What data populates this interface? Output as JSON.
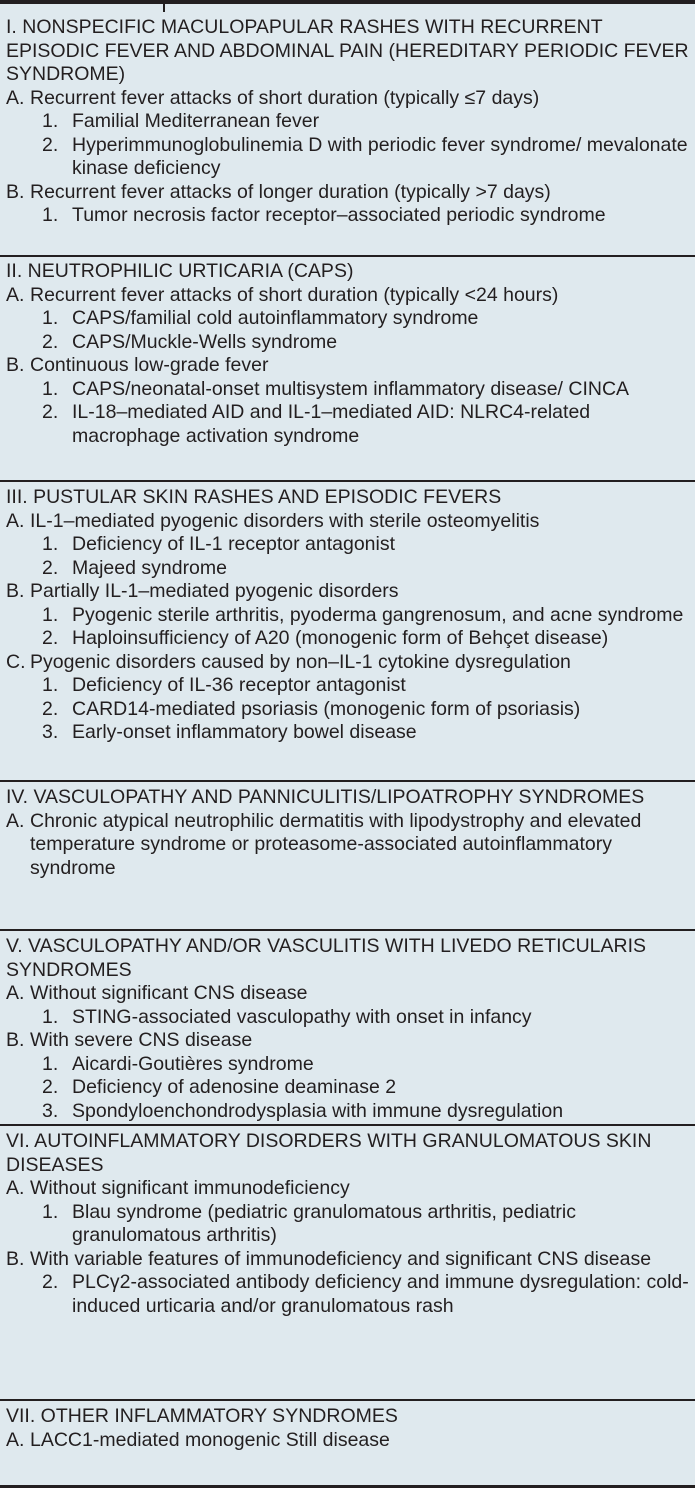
{
  "sections": [
    {
      "heading": "I. NONSPECIFIC MACULOPAPULAR RASHES WITH RECURRENT EPISODIC FEVER AND ABDOMINAL PAIN (HEREDITARY PERIODIC FEVER SYNDROME)",
      "groups": [
        {
          "label": "A.",
          "text": "Recurrent fever attacks of short duration (typically ≤7 days)",
          "items": [
            {
              "label": "1.",
              "text": "Familial Mediterranean fever"
            },
            {
              "label": "2.",
              "text": "Hyperimmunoglobulinemia D with periodic fever syndrome/ mevalonate kinase deficiency"
            }
          ]
        },
        {
          "label": "B.",
          "text": "Recurrent fever attacks of longer duration (typically >7 days)",
          "items": [
            {
              "label": "1.",
              "text": "Tumor necrosis factor receptor–associated periodic syndrome"
            }
          ]
        }
      ]
    },
    {
      "heading": "II. NEUTROPHILIC URTICARIA (CAPS)",
      "groups": [
        {
          "label": "A.",
          "text": "Recurrent fever attacks of short duration (typically <24 hours)",
          "items": [
            {
              "label": "1.",
              "text": "CAPS/familial cold autoinflammatory syndrome"
            },
            {
              "label": "2.",
              "text": "CAPS/Muckle-Wells syndrome"
            }
          ]
        },
        {
          "label": "B.",
          "text": "Continuous low-grade fever",
          "items": [
            {
              "label": "1.",
              "text": "CAPS/neonatal-onset multisystem inflammatory disease/ CINCA"
            },
            {
              "label": "2.",
              "text": "IL-18–mediated AID and IL-1–mediated AID: NLRC4-related macrophage activation syndrome"
            }
          ]
        }
      ]
    },
    {
      "heading": "III. PUSTULAR SKIN RASHES AND EPISODIC FEVERS",
      "groups": [
        {
          "label": "A.",
          "text": "IL-1–mediated pyogenic disorders with sterile osteomyelitis",
          "items": [
            {
              "label": "1.",
              "text": "Deficiency of IL-1 receptor antagonist"
            },
            {
              "label": "2.",
              "text": "Majeed syndrome"
            }
          ]
        },
        {
          "label": "B.",
          "text": "Partially IL-1–mediated pyogenic disorders",
          "items": [
            {
              "label": "1.",
              "text": "Pyogenic sterile arthritis, pyoderma gangrenosum, and acne syndrome"
            },
            {
              "label": "2.",
              "text": "Haploinsufficiency of A20 (monogenic form of Behçet disease)"
            }
          ]
        },
        {
          "label": "C.",
          "text": "Pyogenic disorders caused by non–IL-1 cytokine dysregulation",
          "items": [
            {
              "label": "1.",
              "text": "Deficiency of IL-36 receptor antagonist"
            },
            {
              "label": "2.",
              "text": "CARD14-mediated psoriasis (monogenic form of psoriasis)"
            },
            {
              "label": "3.",
              "text": "Early-onset inflammatory bowel disease"
            }
          ]
        }
      ]
    },
    {
      "heading": "IV. VASCULOPATHY AND PANNICULITIS/LIPOATROPHY SYNDROMES",
      "groups": [
        {
          "label": "A.",
          "text": "Chronic atypical neutrophilic dermatitis with lipodystrophy and elevated temperature syndrome or proteasome-associated autoinflammatory syndrome",
          "items": []
        }
      ]
    },
    {
      "heading": "V. VASCULOPATHY AND/OR VASCULITIS WITH LIVEDO RETICULARIS SYNDROMES",
      "groups": [
        {
          "label": "A.",
          "text": "Without significant CNS disease",
          "items": [
            {
              "label": "1.",
              "text": "STING-associated vasculopathy with onset in infancy"
            }
          ]
        },
        {
          "label": "B.",
          "text": "With severe CNS disease",
          "items": [
            {
              "label": "1.",
              "text": "Aicardi-Goutières syndrome"
            },
            {
              "label": "2.",
              "text": "Deficiency of adenosine deaminase 2"
            },
            {
              "label": "3.",
              "text": "Spondyloenchondrodysplasia with immune dysregulation"
            }
          ]
        }
      ]
    },
    {
      "heading": "VI. AUTOINFLAMMATORY DISORDERS WITH GRANULOMATOUS SKIN DISEASES",
      "groups": [
        {
          "label": "A.",
          "text": "Without significant immunodeficiency",
          "items": [
            {
              "label": "1.",
              "text": "Blau syndrome (pediatric granulomatous arthritis, pediatric granulomatous arthritis)"
            }
          ]
        },
        {
          "label": "B.",
          "text": "With variable features of immunodeficiency and significant CNS disease",
          "items": [
            {
              "label": "2.",
              "text": "PLCγ2-associated antibody deficiency and immune dysregulation: cold-induced urticaria and/or granulomatous rash"
            }
          ]
        }
      ]
    },
    {
      "heading": "VII. OTHER INFLAMMATORY SYNDROMES",
      "groups": [
        {
          "label": "A.",
          "text": "LACC1-mediated monogenic Still disease",
          "items": []
        }
      ]
    }
  ]
}
